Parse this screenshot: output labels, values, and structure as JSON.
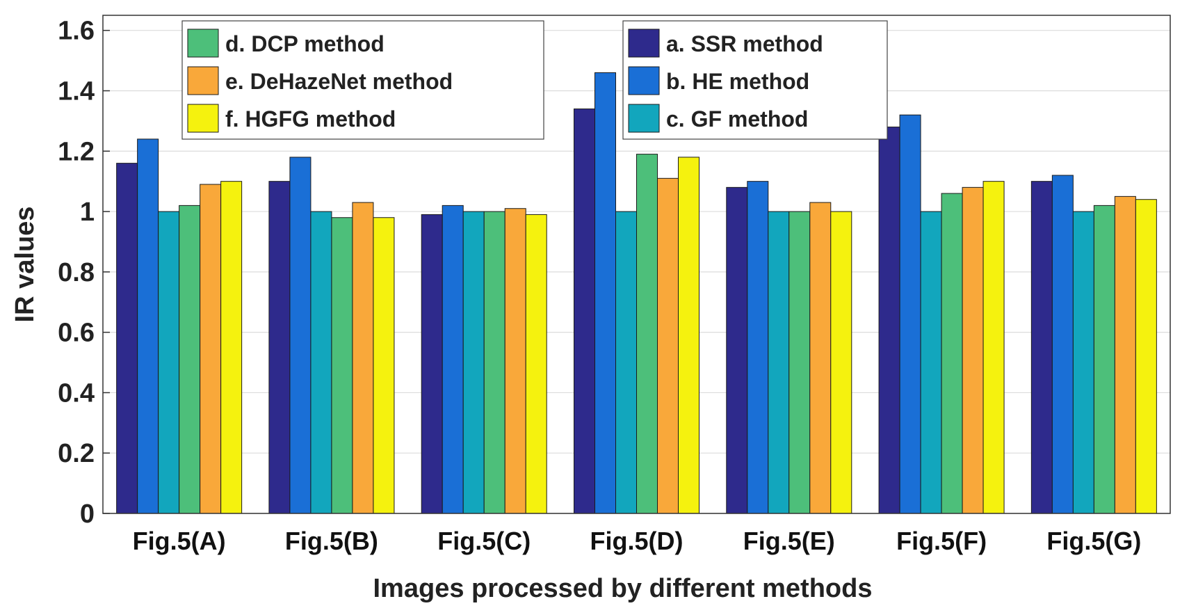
{
  "chart_data": {
    "type": "bar",
    "title": "",
    "xlabel": "Images processed by different methods",
    "ylabel": "IR values",
    "ylim": [
      0,
      1.65
    ],
    "yticks": [
      "0",
      "0.2",
      "0.4",
      "0.6",
      "0.8",
      "1",
      "1.2",
      "1.4",
      "1.6"
    ],
    "grid": true,
    "categories": [
      "Fig.5(A)",
      "Fig.5(B)",
      "Fig.5(C)",
      "Fig.5(D)",
      "Fig.5(E)",
      "Fig.5(F)",
      "Fig.5(G)"
    ],
    "series": [
      {
        "name": "a. SSR method",
        "color": "#2e2a8c",
        "values": [
          1.16,
          1.1,
          0.99,
          1.34,
          1.08,
          1.28,
          1.1
        ]
      },
      {
        "name": "b. HE method",
        "color": "#1a6fd6",
        "values": [
          1.24,
          1.18,
          1.02,
          1.46,
          1.1,
          1.32,
          1.12
        ]
      },
      {
        "name": "c. GF method",
        "color": "#12a6bd",
        "values": [
          1.0,
          1.0,
          1.0,
          1.0,
          1.0,
          1.0,
          1.0
        ]
      },
      {
        "name": "d. DCP method",
        "color": "#4dbf7a",
        "values": [
          1.02,
          0.98,
          1.0,
          1.19,
          1.0,
          1.06,
          1.02
        ]
      },
      {
        "name": "e. DeHazeNet method",
        "color": "#f9a83a",
        "values": [
          1.09,
          1.03,
          1.01,
          1.11,
          1.03,
          1.08,
          1.05
        ]
      },
      {
        "name": "f. HGFG method",
        "color": "#f5f20e",
        "values": [
          1.1,
          0.98,
          0.99,
          1.18,
          1.0,
          1.1,
          1.04
        ]
      }
    ],
    "legend": [
      {
        "position": "top-left",
        "entries": [
          "d. DCP method",
          "e. DeHazeNet method",
          "f. HGFG method"
        ]
      },
      {
        "position": "top-center",
        "entries": [
          "a. SSR method",
          "b. HE method",
          "c. GF method"
        ]
      }
    ]
  }
}
